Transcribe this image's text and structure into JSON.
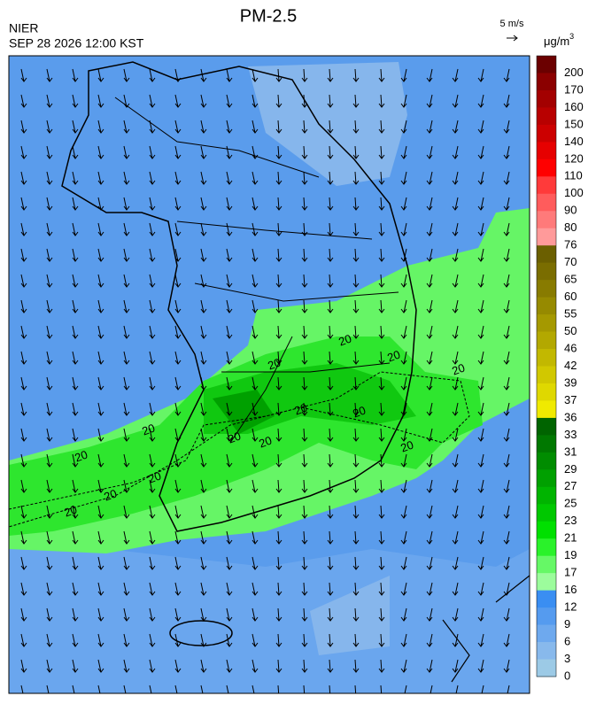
{
  "header": {
    "title": "PM-2.5",
    "agency": "NIER",
    "datetime": "SEP 28 2026 12:00 KST",
    "wind_scale": "5 m/s",
    "unit": "μg/m",
    "unit_exponent": "3"
  },
  "map": {
    "contour_labels": [
      "20",
      "20",
      "20",
      "20",
      "20",
      "20",
      "20",
      "20",
      "20",
      "20",
      "20",
      "20",
      "20",
      "20"
    ]
  },
  "legend": {
    "levels": [
      {
        "value": 200,
        "color": "#6b0000"
      },
      {
        "value": 170,
        "color": "#8b0000"
      },
      {
        "value": 160,
        "color": "#a30000"
      },
      {
        "value": 150,
        "color": "#b80000"
      },
      {
        "value": 140,
        "color": "#cc0000"
      },
      {
        "value": 120,
        "color": "#e60000"
      },
      {
        "value": 110,
        "color": "#ff0000"
      },
      {
        "value": 100,
        "color": "#ff3a3a"
      },
      {
        "value": 90,
        "color": "#ff5c5c"
      },
      {
        "value": 80,
        "color": "#ff7a7a"
      },
      {
        "value": 76,
        "color": "#ff9a9a"
      },
      {
        "value": 70,
        "color": "#6b5f00"
      },
      {
        "value": 65,
        "color": "#7a6d00"
      },
      {
        "value": 60,
        "color": "#887b00"
      },
      {
        "value": 55,
        "color": "#968a00"
      },
      {
        "value": 50,
        "color": "#a59900"
      },
      {
        "value": 46,
        "color": "#b3a800"
      },
      {
        "value": 42,
        "color": "#c2b800"
      },
      {
        "value": 39,
        "color": "#d1c800"
      },
      {
        "value": 37,
        "color": "#dfd800"
      },
      {
        "value": 36,
        "color": "#f0ea00"
      },
      {
        "value": 33,
        "color": "#006400"
      },
      {
        "value": 31,
        "color": "#007800"
      },
      {
        "value": 29,
        "color": "#008c00"
      },
      {
        "value": 27,
        "color": "#00a000"
      },
      {
        "value": 25,
        "color": "#00b400"
      },
      {
        "value": 23,
        "color": "#00c800"
      },
      {
        "value": 21,
        "color": "#00e000"
      },
      {
        "value": 19,
        "color": "#2af22a"
      },
      {
        "value": 17,
        "color": "#66f866"
      },
      {
        "value": 16,
        "color": "#9cfc9c"
      },
      {
        "value": 12,
        "color": "#3a8ef2"
      },
      {
        "value": 9,
        "color": "#559bef"
      },
      {
        "value": 6,
        "color": "#6ea9ee"
      },
      {
        "value": 3,
        "color": "#88b9ec"
      },
      {
        "value": 0,
        "color": "#9ccae6"
      }
    ]
  }
}
